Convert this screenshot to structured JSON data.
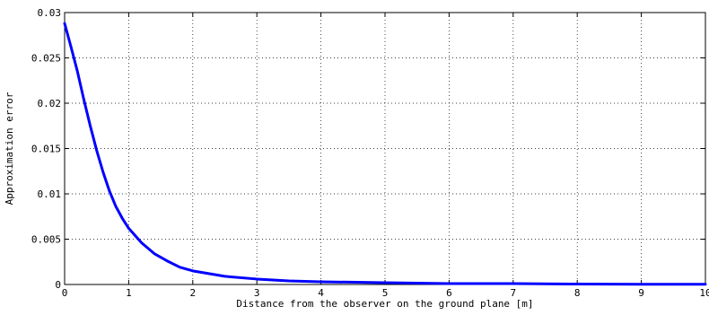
{
  "chart_data": {
    "type": "line",
    "title": "",
    "xlabel": "Distance from the observer on the ground plane [m]",
    "ylabel": "Approximation error",
    "xlim": [
      0,
      10
    ],
    "ylim": [
      0,
      0.03
    ],
    "xticks": [
      0,
      1,
      2,
      3,
      4,
      5,
      6,
      7,
      8,
      9,
      10
    ],
    "xtick_labels": [
      "0",
      "1",
      "2",
      "3",
      "4",
      "5",
      "6",
      "7",
      "8",
      "9",
      "10"
    ],
    "yticks": [
      0,
      0.005,
      0.01,
      0.015,
      0.02,
      0.025,
      0.03
    ],
    "ytick_labels": [
      "0",
      "0.005",
      "0.01",
      "0.015",
      "0.02",
      "0.025",
      "0.03"
    ],
    "grid": true,
    "series": [
      {
        "color": "#0000ff",
        "x": [
          0,
          0.1,
          0.2,
          0.3,
          0.4,
          0.5,
          0.6,
          0.7,
          0.8,
          0.9,
          1.0,
          1.2,
          1.4,
          1.6,
          1.8,
          2.0,
          2.5,
          3.0,
          3.5,
          4.0,
          5.0,
          6.0,
          7.0,
          8.0,
          9.0,
          10.0
        ],
        "y": [
          0.0288,
          0.0262,
          0.0235,
          0.0204,
          0.0175,
          0.0148,
          0.0124,
          0.0103,
          0.0086,
          0.0073,
          0.0062,
          0.0046,
          0.0034,
          0.0026,
          0.0019,
          0.0015,
          0.0009,
          0.0006,
          0.0004,
          0.0003,
          0.0002,
          0.0001,
          0.0001,
          5e-05,
          3e-05,
          2e-05
        ]
      }
    ]
  }
}
